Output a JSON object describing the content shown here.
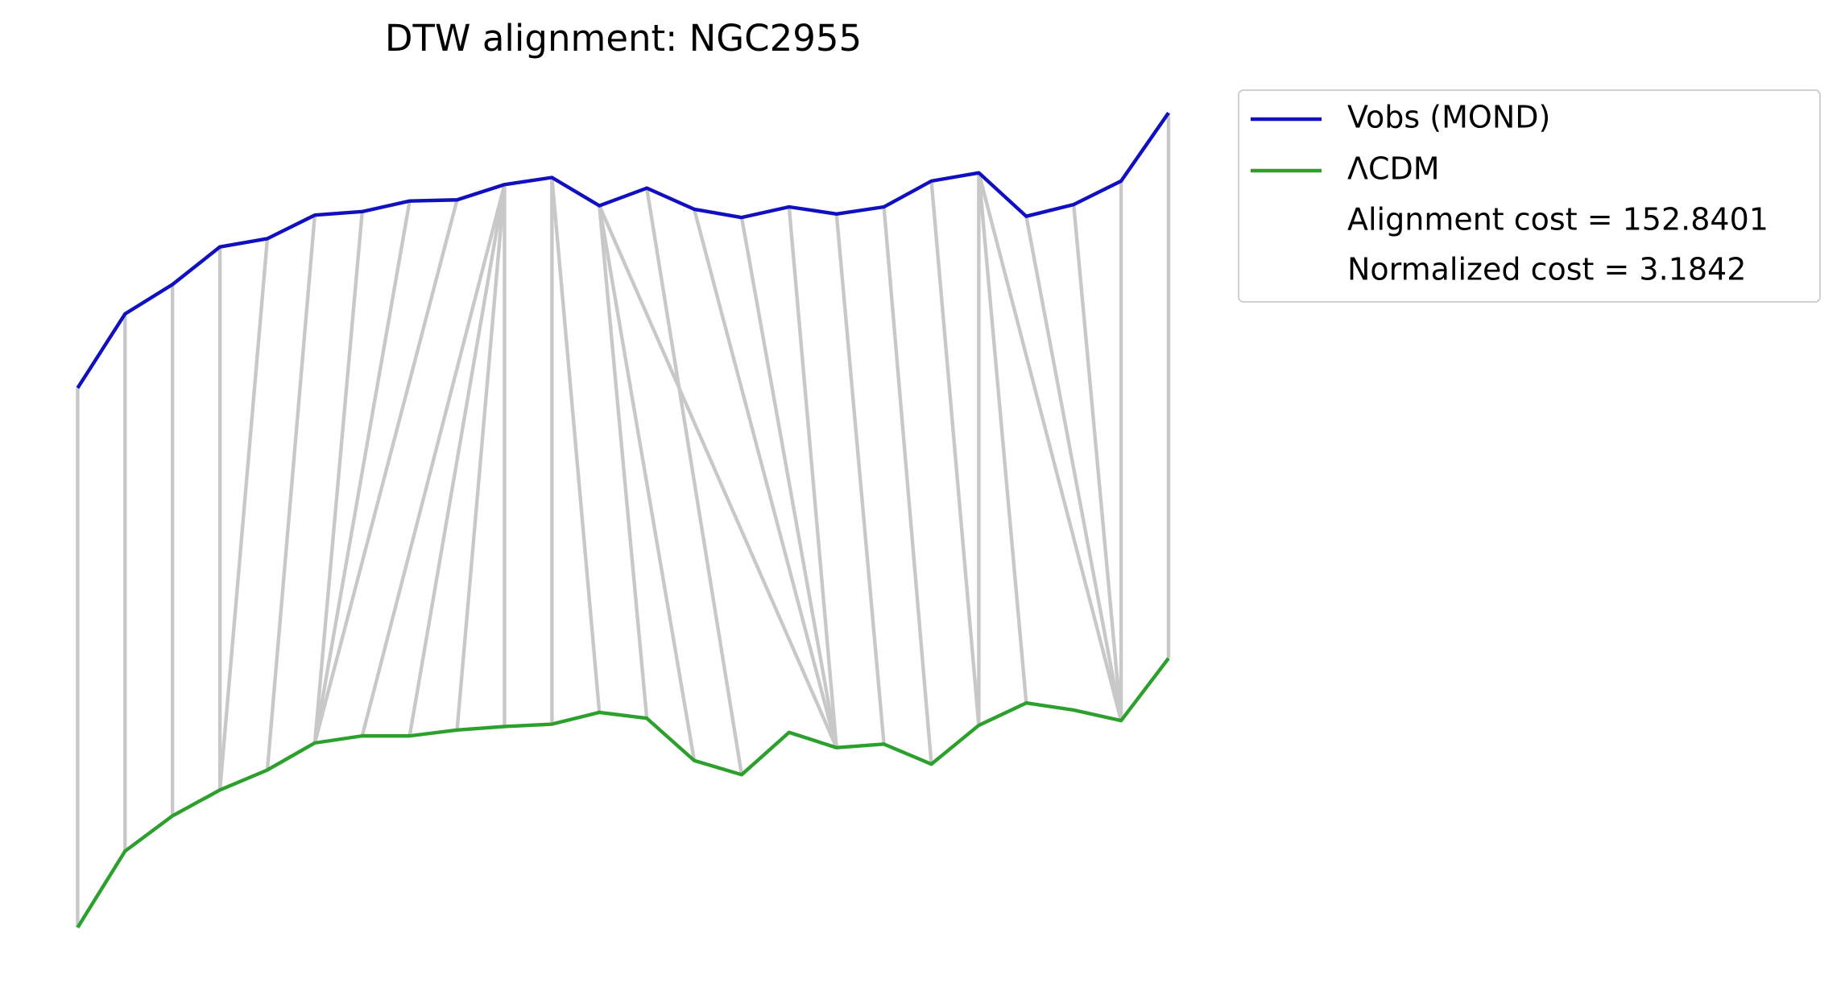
{
  "chart_data": {
    "type": "dtw",
    "title": "DTW alignment: NGC2955",
    "ylim": [
      0,
      843
    ],
    "series": [
      {
        "name": "Vobs (MOND)",
        "color": "#1010c0",
        "values": [
          513,
          576,
          601,
          633,
          640,
          660,
          663,
          672,
          673,
          686,
          692,
          668,
          683,
          665,
          658,
          667,
          661,
          667,
          689,
          696,
          659,
          669,
          689,
          747
        ]
      },
      {
        "name": "ΛCDM",
        "color": "#2ca02c",
        "values": [
          54,
          119,
          149,
          171,
          188,
          211,
          217,
          217,
          222,
          225,
          227,
          237,
          232,
          196,
          184,
          220,
          207,
          210,
          193,
          226,
          245,
          239,
          230,
          283
        ]
      }
    ],
    "alignment": [
      [
        0,
        0
      ],
      [
        1,
        1
      ],
      [
        2,
        2
      ],
      [
        3,
        3
      ],
      [
        4,
        3
      ],
      [
        5,
        4
      ],
      [
        6,
        5
      ],
      [
        7,
        5
      ],
      [
        8,
        5
      ],
      [
        9,
        6
      ],
      [
        9,
        7
      ],
      [
        9,
        8
      ],
      [
        9,
        9
      ],
      [
        10,
        10
      ],
      [
        10,
        11
      ],
      [
        11,
        12
      ],
      [
        11,
        13
      ],
      [
        11,
        16
      ],
      [
        12,
        14
      ],
      [
        13,
        16
      ],
      [
        14,
        16
      ],
      [
        15,
        16
      ],
      [
        16,
        17
      ],
      [
        17,
        18
      ],
      [
        18,
        19
      ],
      [
        19,
        19
      ],
      [
        19,
        20
      ],
      [
        19,
        22
      ],
      [
        20,
        22
      ],
      [
        21,
        22
      ],
      [
        22,
        22
      ],
      [
        23,
        23
      ]
    ],
    "alignment_color": "#c8c8c8",
    "annotations": [
      "Alignment cost = 152.8401",
      "Normalized cost = 3.1842"
    ]
  }
}
